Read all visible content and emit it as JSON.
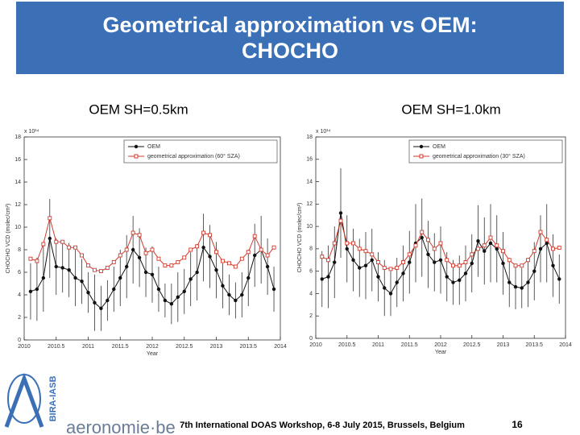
{
  "slide": {
    "title": "Geometrical approximation vs OEM: CHOCHO",
    "footer": "7th International DOAS Workshop, 6-8 July 2015, Brussels, Belgium",
    "page_number": 16,
    "logo_text": "aeronomie·be",
    "logo_vertical": "BIRA-IASB"
  },
  "chart_data": [
    {
      "type": "line",
      "title": "OEM SH=0.5km",
      "x_label": "Year",
      "y_label": "CHOCHO VCD (molec/cm²)",
      "y_multiplier": "x 10¹⁴",
      "x": [
        2010.1,
        2010.2,
        2010.3,
        2010.4,
        2010.5,
        2010.6,
        2010.7,
        2010.8,
        2010.9,
        2011.0,
        2011.1,
        2011.2,
        2011.3,
        2011.4,
        2011.5,
        2011.6,
        2011.7,
        2011.8,
        2011.9,
        2012.0,
        2012.1,
        2012.2,
        2012.3,
        2012.4,
        2012.5,
        2012.6,
        2012.7,
        2012.8,
        2012.9,
        2013.0,
        2013.1,
        2013.2,
        2013.3,
        2013.4,
        2013.5,
        2013.6,
        2013.7,
        2013.8,
        2013.9
      ],
      "series": [
        {
          "name": "OEM",
          "color": "#111111",
          "marker": "circle",
          "values": [
            4.3,
            4.5,
            5.5,
            9.0,
            6.5,
            6.4,
            6.2,
            5.5,
            5.2,
            4.2,
            3.3,
            2.8,
            3.5,
            4.5,
            5.5,
            6.5,
            8.0,
            7.3,
            6.0,
            5.8,
            4.5,
            3.5,
            3.2,
            3.8,
            4.3,
            5.4,
            6.0,
            8.2,
            7.4,
            6.2,
            4.8,
            4.0,
            3.5,
            4.0,
            5.5,
            7.5,
            8.0,
            6.5,
            4.5
          ],
          "errors": [
            2.5,
            2.8,
            3.0,
            3.5,
            2.5,
            2.2,
            2.4,
            2.5,
            2.0,
            1.8,
            2.5,
            2.0,
            1.8,
            2.0,
            2.5,
            2.8,
            3.0,
            2.6,
            2.2,
            2.5,
            2.0,
            1.5,
            1.8,
            2.2,
            2.0,
            2.4,
            2.5,
            3.0,
            2.8,
            2.5,
            2.0,
            1.8,
            1.6,
            2.0,
            2.5,
            2.8,
            3.0,
            2.5,
            2.0
          ]
        },
        {
          "name": "geometrical approximation (60° SZA)",
          "color": "#d23a2e",
          "marker": "square",
          "values": [
            7.2,
            7.0,
            8.5,
            10.8,
            8.7,
            8.7,
            8.2,
            8.2,
            7.5,
            6.6,
            6.2,
            6.1,
            6.4,
            6.9,
            7.5,
            8.0,
            9.5,
            9.3,
            7.7,
            8.0,
            7.2,
            6.6,
            6.6,
            6.9,
            7.3,
            8.0,
            8.3,
            9.5,
            9.3,
            7.8,
            7.0,
            6.8,
            6.5,
            7.2,
            7.8,
            9.2,
            8.0,
            7.5,
            8.2
          ]
        }
      ],
      "xlim": [
        2010,
        2014
      ],
      "xticks": [
        2010,
        2010.5,
        2011,
        2011.5,
        2012,
        2012.5,
        2013,
        2013.5,
        2014
      ],
      "ylim": [
        0,
        18
      ],
      "yticks": [
        0,
        2,
        4,
        6,
        8,
        10,
        12,
        14,
        16,
        18
      ],
      "legend": "upper right"
    },
    {
      "type": "line",
      "title": "OEM SH=1.0km",
      "x_label": "Year",
      "y_label": "CHOCHO VCD (molec/cm²)",
      "y_multiplier": "x 10¹⁴",
      "x": [
        2010.1,
        2010.2,
        2010.3,
        2010.4,
        2010.5,
        2010.6,
        2010.7,
        2010.8,
        2010.9,
        2011.0,
        2011.1,
        2011.2,
        2011.3,
        2011.4,
        2011.5,
        2011.6,
        2011.7,
        2011.8,
        2011.9,
        2012.0,
        2012.1,
        2012.2,
        2012.3,
        2012.4,
        2012.5,
        2012.6,
        2012.7,
        2012.8,
        2012.9,
        2013.0,
        2013.1,
        2013.2,
        2013.3,
        2013.4,
        2013.5,
        2013.6,
        2013.7,
        2013.8,
        2013.9
      ],
      "series": [
        {
          "name": "OEM",
          "color": "#111111",
          "marker": "circle",
          "values": [
            5.3,
            5.5,
            6.8,
            11.2,
            8.0,
            7.0,
            6.3,
            6.5,
            7.0,
            5.5,
            4.5,
            4.0,
            5.0,
            5.8,
            6.8,
            8.5,
            9.0,
            7.5,
            6.8,
            7.0,
            5.5,
            5.0,
            5.2,
            5.8,
            6.7,
            8.7,
            7.8,
            8.5,
            8.0,
            6.7,
            5.0,
            4.6,
            4.5,
            5.0,
            6.0,
            8.0,
            8.5,
            6.5,
            5.3
          ],
          "errors": [
            2.5,
            2.8,
            3.2,
            4.0,
            3.0,
            2.8,
            2.6,
            3.0,
            2.8,
            2.2,
            2.5,
            2.0,
            2.2,
            2.5,
            2.8,
            3.5,
            3.5,
            3.0,
            2.6,
            3.0,
            2.2,
            2.0,
            2.2,
            2.5,
            2.6,
            3.2,
            3.0,
            3.5,
            3.0,
            2.8,
            2.2,
            2.0,
            1.8,
            2.2,
            2.6,
            3.0,
            3.5,
            2.8,
            2.2
          ]
        },
        {
          "name": "geometrical approximation (30° SZA)",
          "color": "#d23a2e",
          "marker": "square",
          "values": [
            7.3,
            7.0,
            8.5,
            10.5,
            8.5,
            8.5,
            8.0,
            7.8,
            7.5,
            6.8,
            6.3,
            6.2,
            6.3,
            6.8,
            7.5,
            8.3,
            9.5,
            8.8,
            8.0,
            8.5,
            7.0,
            6.5,
            6.5,
            6.8,
            7.5,
            8.0,
            8.3,
            9.0,
            8.3,
            7.8,
            7.0,
            6.5,
            6.5,
            7.0,
            7.8,
            9.5,
            8.8,
            8.0,
            8.1
          ]
        }
      ],
      "xlim": [
        2010,
        2014
      ],
      "xticks": [
        2010,
        2010.5,
        2011,
        2011.5,
        2012,
        2012.5,
        2013,
        2013.5,
        2014
      ],
      "ylim": [
        0,
        18
      ],
      "yticks": [
        0,
        2,
        4,
        6,
        8,
        10,
        12,
        14,
        16,
        18
      ],
      "legend": "upper right"
    }
  ]
}
